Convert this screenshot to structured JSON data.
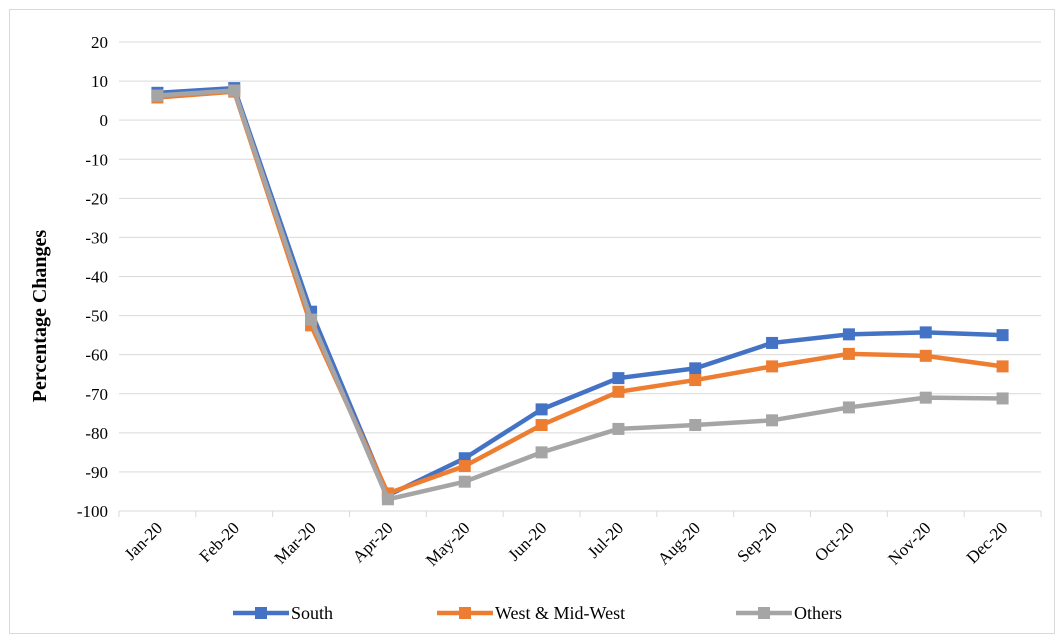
{
  "chart_data": {
    "type": "line",
    "title": "",
    "xlabel": "",
    "ylabel": "Percentage Changes",
    "ylim": [
      -100,
      20
    ],
    "yticks": [
      20,
      10,
      0,
      -10,
      -20,
      -30,
      -40,
      -50,
      -60,
      -70,
      -80,
      -90,
      -100
    ],
    "grid": true,
    "legend_position": "bottom",
    "categories": [
      "Jan-20",
      "Feb-20",
      "Mar-20",
      "Apr-20",
      "May-20",
      "Jun-20",
      "Jul-20",
      "Aug-20",
      "Sep-20",
      "Oct-20",
      "Nov-20",
      "Dec-20"
    ],
    "series": [
      {
        "name": "South",
        "color": "#4472c4",
        "values": [
          7,
          8.2,
          -49,
          -96,
          -86.5,
          -74,
          -66,
          -63.5,
          -57,
          -54.8,
          -54.3,
          -55
        ]
      },
      {
        "name": "West & Mid-West",
        "color": "#ed7d31",
        "values": [
          5.8,
          7.3,
          -52.5,
          -95.5,
          -88.5,
          -78,
          -69.5,
          -66.5,
          -63,
          -59.8,
          -60.3,
          -63
        ]
      },
      {
        "name": "Others",
        "color": "#a5a5a5",
        "values": [
          6.3,
          7.6,
          -51,
          -97,
          -92.5,
          -85,
          -79,
          -78,
          -76.8,
          -73.5,
          -71,
          -71.2
        ]
      }
    ]
  }
}
